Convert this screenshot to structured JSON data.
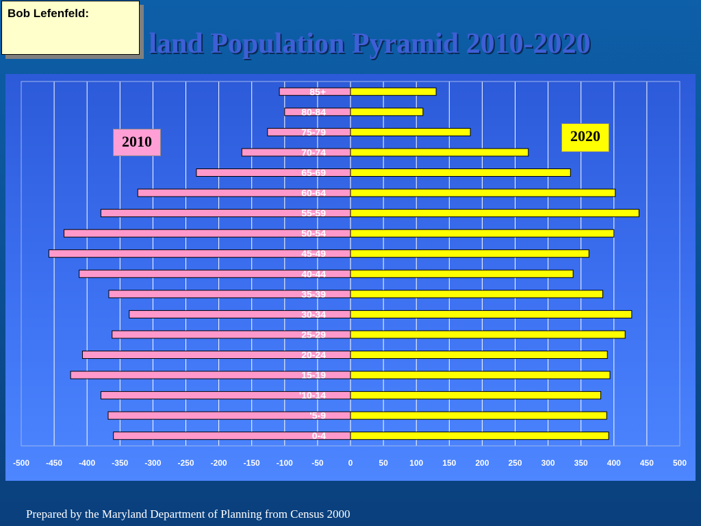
{
  "slide": {
    "title": "land Population Pyramid 2010-2020",
    "note": "Bob Lefenfeld:",
    "footnote": "Prepared by the Maryland Department of Planning from Census 2000"
  },
  "chart_data": {
    "type": "bar",
    "orientation": "horizontal",
    "categories": [
      "85+",
      "80-84",
      "75-79",
      "70-74",
      "65-69",
      "60-64",
      "55-59",
      "50-54",
      "45-49",
      "40-44",
      "35-39",
      "30-34",
      "25-29",
      "20-24",
      "15-19",
      "'10-14",
      "'5-9",
      "0-4"
    ],
    "series": [
      {
        "name": "2010",
        "color": "#ff99cc",
        "values": [
          -108,
          -100,
          -126,
          -165,
          -234,
          -323,
          -379,
          -435,
          -458,
          -412,
          -367,
          -336,
          -362,
          -407,
          -425,
          -379,
          -368,
          -360
        ]
      },
      {
        "name": "2020",
        "color": "#ffff00",
        "values": [
          130,
          110,
          182,
          270,
          334,
          402,
          438,
          400,
          362,
          338,
          383,
          427,
          417,
          390,
          394,
          380,
          389,
          392
        ]
      }
    ],
    "xticks": [
      -500,
      -450,
      -400,
      -350,
      -300,
      -250,
      -200,
      -150,
      -100,
      -50,
      0,
      50,
      100,
      150,
      200,
      250,
      300,
      350,
      400,
      450,
      500
    ],
    "xlim": [
      -500,
      500
    ],
    "grid": true,
    "bar_outline": "#000000",
    "grid_color": "#ffffff"
  }
}
